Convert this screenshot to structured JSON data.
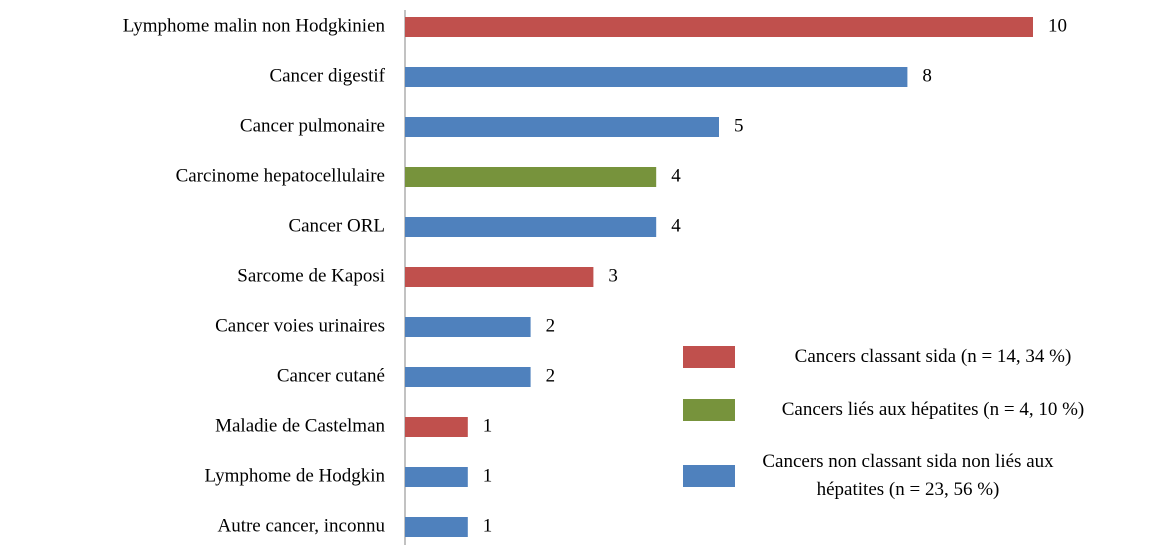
{
  "chart_data": {
    "type": "bar",
    "orientation": "horizontal",
    "categories": [
      "Lymphome malin non Hodgkinien",
      "Cancer digestif",
      "Cancer pulmonaire",
      "Carcinome hepatocellulaire",
      "Cancer ORL",
      "Sarcome de Kaposi",
      "Cancer voies urinaires",
      "Cancer cutané",
      "Maladie de Castelman",
      "Lymphome de Hodgkin",
      "Autre cancer, inconnu"
    ],
    "series": [
      {
        "name": "Cancers classant sida (n = 14, 34 %)",
        "color": "#c0504d",
        "values": [
          10,
          null,
          null,
          null,
          null,
          3,
          null,
          null,
          1,
          null,
          null
        ]
      },
      {
        "name": "Cancers liés aux hépatites (n = 4, 10 %)",
        "color": "#77933c",
        "values": [
          null,
          null,
          null,
          4,
          null,
          null,
          null,
          null,
          null,
          null,
          null
        ]
      },
      {
        "name": "Cancers  non classant sida non liés aux hépatites (n = 23, 56 %)",
        "color": "#4f81bd",
        "values": [
          null,
          8,
          5,
          null,
          4,
          null,
          2,
          2,
          null,
          1,
          1
        ]
      }
    ],
    "xlim": [
      0,
      10
    ],
    "legend": "lower right"
  }
}
